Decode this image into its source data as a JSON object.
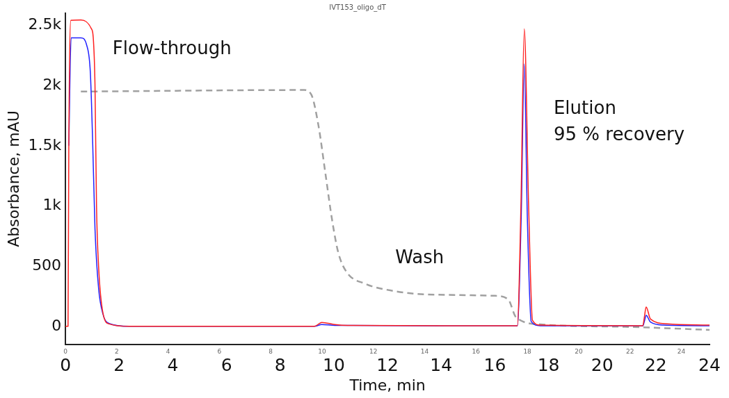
{
  "chart_data": {
    "type": "line",
    "title": "IVT153_oligo_dT",
    "xlabel": "Time, min",
    "ylabel": "Absorbance, mAU",
    "xlim": [
      0,
      25.1
    ],
    "xticks": [
      0,
      2,
      4,
      6,
      8,
      10,
      12,
      14,
      16,
      18,
      20,
      22,
      24
    ],
    "x2lim": [
      0,
      24
    ],
    "x2ticks": [
      0,
      2,
      4,
      6,
      8,
      10,
      12,
      14,
      16,
      18,
      20,
      22,
      24
    ],
    "ylim": [
      -150,
      2600
    ],
    "yticks": [
      0,
      500,
      {
        "value": 1000,
        "label": "1k"
      },
      {
        "value": 1500,
        "label": "1.5k"
      },
      {
        "value": 2000,
        "label": "2k"
      },
      {
        "value": 2500,
        "label": "2.5k"
      }
    ],
    "grid": false,
    "legend": false,
    "marker": "none",
    "series": [
      {
        "color": "#ff2020",
        "line_style": "solid",
        "x": [
          0,
          0.1,
          0.13,
          0.21,
          0.6,
          1.01,
          1.08,
          1.15,
          1.21,
          1.29,
          1.47,
          1.7,
          2.5,
          9.7,
          9.99,
          10.5,
          11,
          17.3,
          17.61,
          17.75,
          17.88,
          18.05,
          18.2,
          18.5,
          22.5,
          22.56,
          22.63,
          22.8,
          23.45,
          25.1
        ],
        "values": [
          0,
          0,
          1500,
          2542,
          2545,
          2472,
          2404,
          2005,
          1000,
          500,
          100,
          20,
          0,
          0,
          32,
          15,
          8,
          5,
          5,
          1000,
          2472,
          1000,
          50,
          10,
          5,
          75,
          161,
          60,
          20,
          10
        ]
      },
      {
        "color": "#2020ff",
        "line_style": "solid",
        "x": [
          0.13,
          0.22,
          0.6,
          0.83,
          0.97,
          1.06,
          1.15,
          1.29,
          1.47,
          1.7,
          2.5,
          9.7,
          9.99,
          10.5,
          17.3,
          17.61,
          17.76,
          17.88,
          18.0,
          18.15,
          18.5,
          22.5,
          22.56,
          22.63,
          22.8,
          23.3,
          25.1
        ],
        "values": [
          1500,
          2397,
          2397,
          2333,
          2104,
          1527,
          811,
          316,
          95,
          24,
          0,
          0,
          15,
          8,
          3,
          3,
          900,
          2180,
          900,
          40,
          5,
          3,
          40,
          91,
          35,
          10,
          5
        ]
      },
      {
        "color": "#a0a0a0",
        "line_style": "dashed",
        "x": [
          0.6,
          9.3,
          9.58,
          9.86,
          10.13,
          10.4,
          10.63,
          10.95,
          11.68,
          12.78,
          14.14,
          16.7,
          17.25,
          17.56,
          18.52,
          21.8,
          25.1
        ],
        "values": [
          1950,
          1963,
          1925,
          1667,
          1270,
          871,
          614,
          453,
          354,
          294,
          264,
          254,
          225,
          76,
          16,
          -4,
          -30
        ]
      }
    ],
    "annotations": [
      "Flow-through",
      "Wash",
      "Elution",
      "95 % recovery"
    ]
  }
}
